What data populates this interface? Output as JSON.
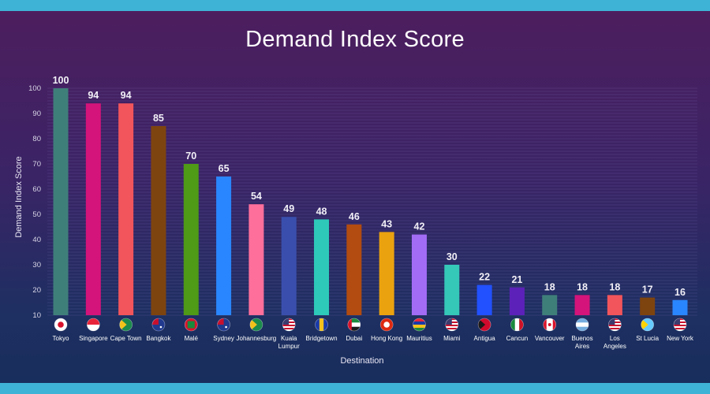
{
  "chart_data": {
    "type": "bar",
    "title": "Demand Index Score",
    "xlabel": "Destination",
    "ylabel": "Demand Index Score",
    "ylim": [
      10,
      100
    ],
    "yticks": [
      10,
      20,
      30,
      40,
      50,
      60,
      70,
      80,
      90,
      100
    ],
    "grid": true,
    "legend": "none",
    "categories": [
      "Tokyo",
      "Singapore",
      "Cape Town",
      "Bangkok",
      "Malé",
      "Sydney",
      "Johannesburg",
      "Kuala Lumpur",
      "Bridgetown",
      "Dubai",
      "Hong Kong",
      "Mauritius",
      "Miami",
      "Antigua",
      "Cancun",
      "Vancouver",
      "Buenos Aires",
      "Los Angeles",
      "St Lucia",
      "New York"
    ],
    "values": [
      100,
      94,
      94,
      85,
      70,
      65,
      54,
      49,
      48,
      46,
      43,
      42,
      30,
      22,
      21,
      18,
      18,
      18,
      17,
      16
    ],
    "bar_colors": [
      "#3f7f7a",
      "#d4147a",
      "#f2555b",
      "#7e440f",
      "#4f9a17",
      "#2a86ff",
      "#ff6f9b",
      "#3a4fad",
      "#2ec9b9",
      "#b24c10",
      "#eaa20f",
      "#a26cf5",
      "#35c7b8",
      "#2251ff",
      "#5c21b8",
      "#3f7f7a",
      "#d4147a",
      "#f2555b",
      "#7e440f",
      "#2a86ff"
    ],
    "flag_icons": [
      "japan-flag-icon",
      "singapore-flag-icon",
      "south-africa-flag-icon",
      "australia-flag-icon",
      "maldives-flag-icon",
      "australia-flag-icon",
      "south-africa-flag-icon",
      "usa-flag-icon",
      "barbados-flag-icon",
      "uae-flag-icon",
      "hong-kong-flag-icon",
      "mauritius-flag-icon",
      "usa-flag-icon",
      "antigua-flag-icon",
      "mexico-flag-icon",
      "canada-flag-icon",
      "argentina-flag-icon",
      "usa-flag-icon",
      "st-lucia-flag-icon",
      "usa-flag-icon"
    ]
  }
}
